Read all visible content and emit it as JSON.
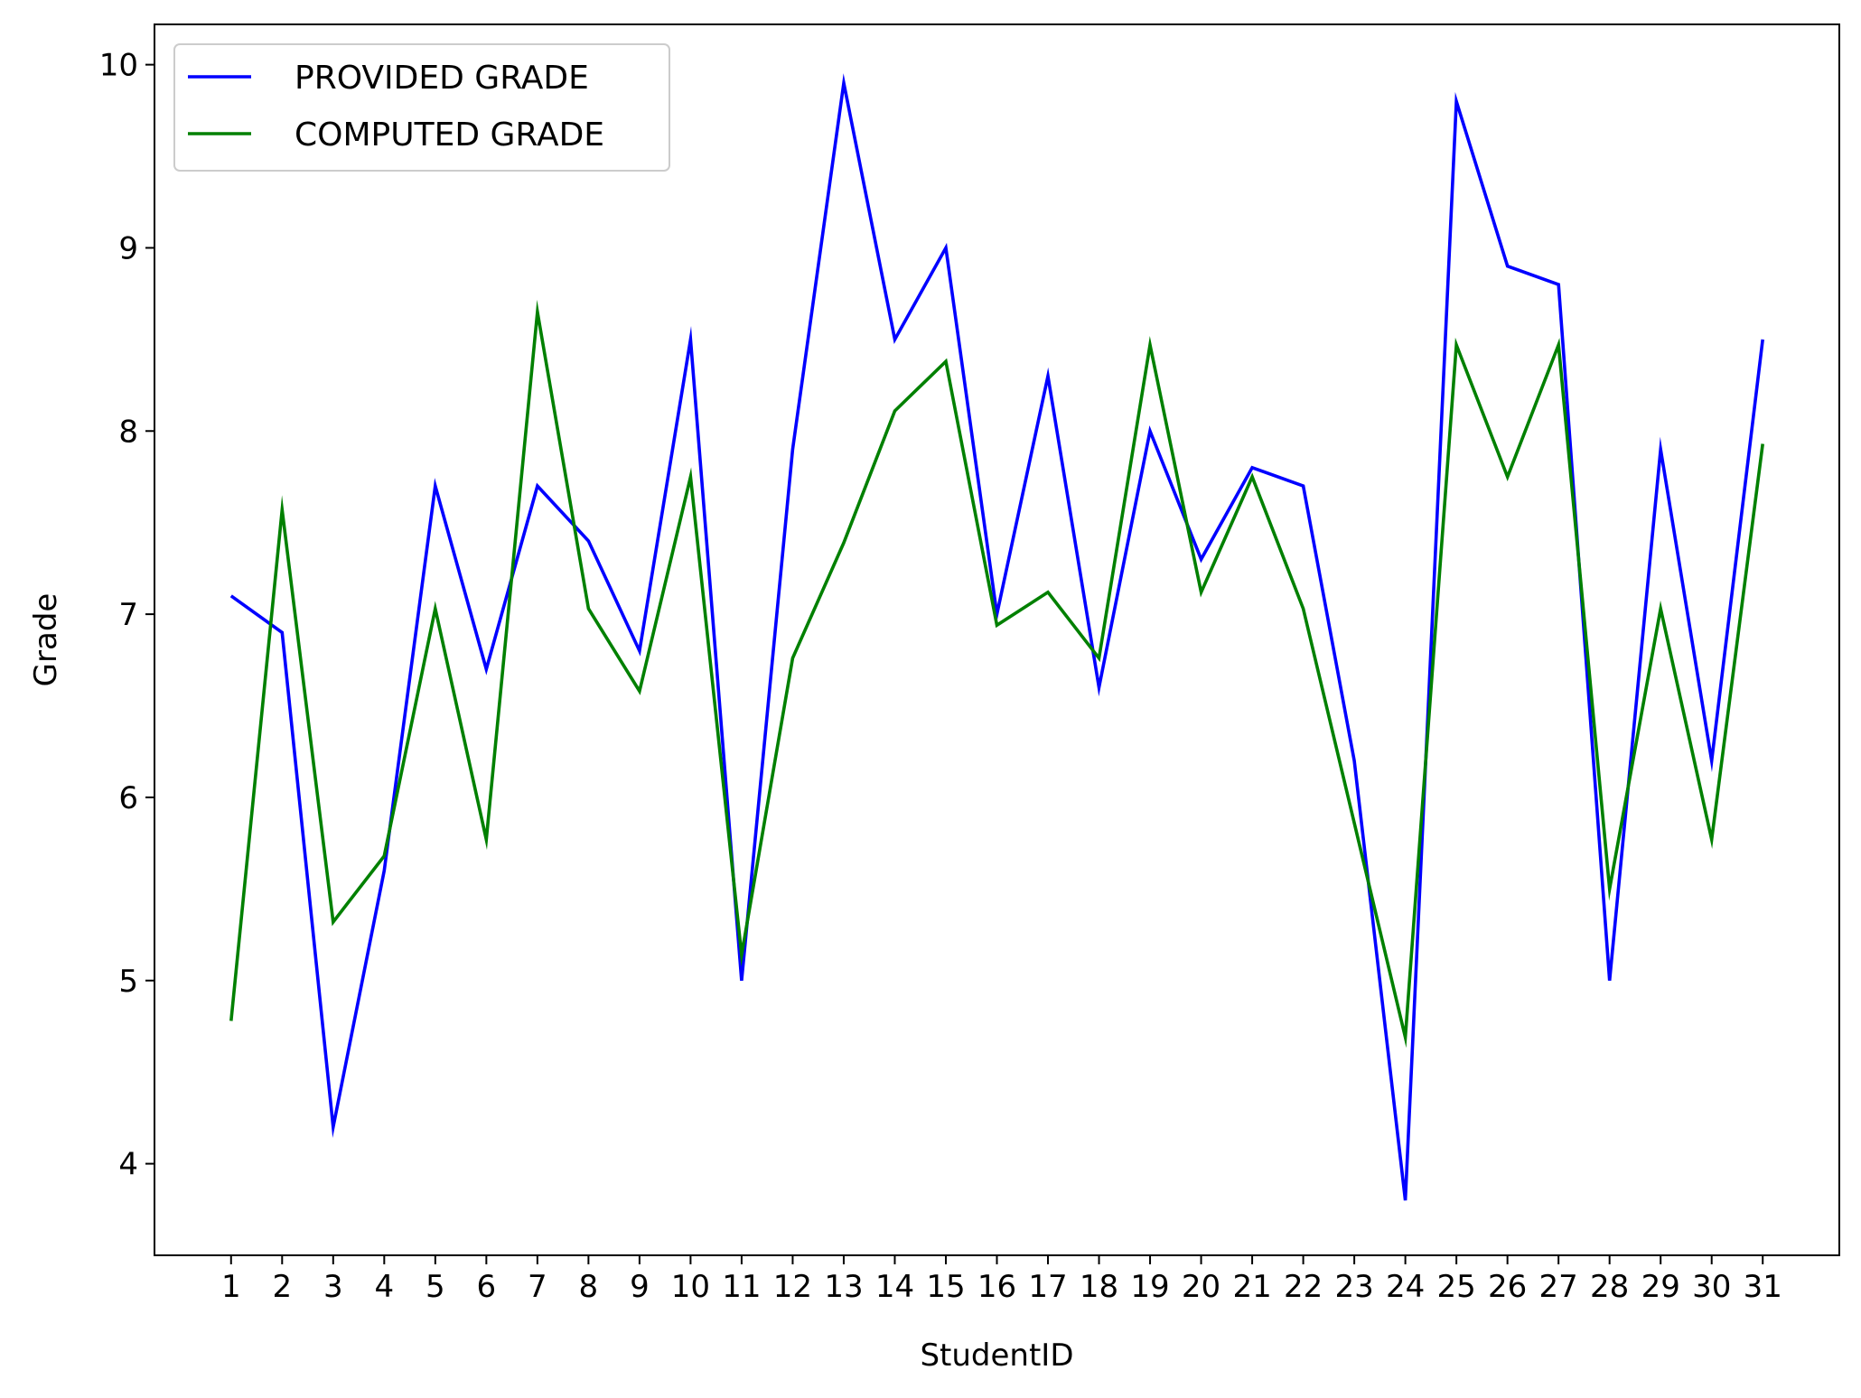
{
  "chart_data": {
    "type": "line",
    "title": "",
    "xlabel": "StudentID",
    "ylabel": "Grade",
    "x": [
      1,
      2,
      3,
      4,
      5,
      6,
      7,
      8,
      9,
      10,
      11,
      12,
      13,
      14,
      15,
      16,
      17,
      18,
      19,
      20,
      21,
      22,
      23,
      24,
      25,
      26,
      27,
      28,
      29,
      30,
      31
    ],
    "x_tick_labels": [
      "1",
      "2",
      "3",
      "4",
      "5",
      "6",
      "7",
      "8",
      "9",
      "10",
      "11",
      "12",
      "13",
      "14",
      "15",
      "16",
      "17",
      "18",
      "19",
      "20",
      "21",
      "22",
      "23",
      "24",
      "25",
      "26",
      "27",
      "28",
      "29",
      "30",
      "31"
    ],
    "y_ticks": [
      4,
      5,
      6,
      7,
      8,
      9,
      10
    ],
    "y_tick_labels": [
      "4",
      "5",
      "6",
      "7",
      "8",
      "9",
      "10"
    ],
    "xlim": [
      -0.5,
      32.5
    ],
    "ylim": [
      3.5,
      10.22
    ],
    "grid": false,
    "legend_position": "top-left",
    "series": [
      {
        "name": "PROVIDED GRADE",
        "color": "#0000ff",
        "values": [
          7.1,
          6.9,
          4.2,
          5.6,
          7.7,
          6.7,
          7.7,
          7.4,
          6.8,
          8.5,
          5.0,
          7.9,
          9.9,
          8.5,
          9.0,
          7.0,
          8.3,
          6.6,
          8.0,
          7.3,
          7.8,
          7.7,
          6.2,
          3.8,
          9.8,
          8.9,
          8.8,
          5.0,
          7.9,
          6.2,
          8.5
        ]
      },
      {
        "name": "COMPUTED GRADE",
        "color": "#008000",
        "values": [
          4.78,
          7.57,
          5.32,
          5.68,
          7.03,
          5.77,
          8.65,
          7.03,
          6.58,
          7.75,
          5.14,
          6.76,
          7.39,
          8.11,
          8.38,
          6.94,
          7.12,
          6.76,
          8.47,
          7.12,
          7.75,
          7.03,
          5.86,
          4.69,
          8.47,
          7.75,
          8.47,
          5.5,
          7.03,
          5.77,
          7.93
        ]
      }
    ]
  }
}
